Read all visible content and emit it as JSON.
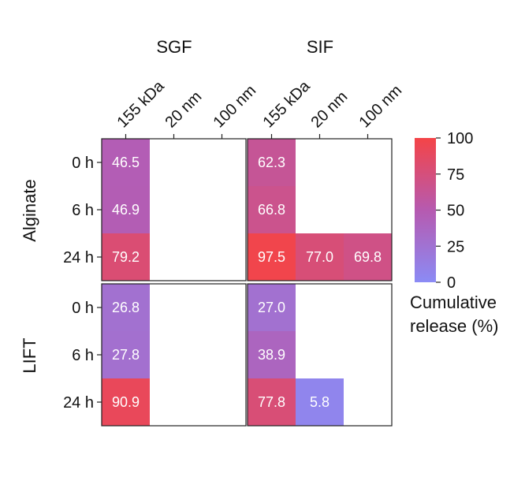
{
  "chart_data": {
    "type": "heatmap",
    "columns": [
      "155 kDa",
      "20 nm",
      "100 nm"
    ],
    "rows": [
      "0 h",
      "6 h",
      "24 h"
    ],
    "panels": [
      {
        "column_group": "SGF",
        "row_group": "Alginate",
        "values": [
          [
            46.5,
            null,
            null
          ],
          [
            46.9,
            null,
            null
          ],
          [
            79.2,
            null,
            null
          ]
        ]
      },
      {
        "column_group": "SIF",
        "row_group": "Alginate",
        "values": [
          [
            62.3,
            null,
            null
          ],
          [
            66.8,
            null,
            null
          ],
          [
            97.5,
            77.0,
            69.8
          ]
        ]
      },
      {
        "column_group": "SGF",
        "row_group": "LIFT",
        "values": [
          [
            26.8,
            null,
            null
          ],
          [
            27.8,
            null,
            null
          ],
          [
            90.9,
            null,
            null
          ]
        ]
      },
      {
        "column_group": "SIF",
        "row_group": "LIFT",
        "values": [
          [
            27.0,
            null,
            null
          ],
          [
            38.9,
            null,
            null
          ],
          [
            77.8,
            5.8,
            null
          ]
        ]
      }
    ],
    "column_groups": [
      "SGF",
      "SIF"
    ],
    "row_groups": [
      "Alginate",
      "LIFT"
    ],
    "colorbar": {
      "label_line1": "Cumulative",
      "label_line2": "release (%)",
      "ticks": [
        0,
        25,
        50,
        75,
        100
      ],
      "range": [
        0,
        100
      ],
      "color_low": "#8b8bf5",
      "color_mid": "#b65ab0",
      "color_high": "#f44447"
    }
  }
}
